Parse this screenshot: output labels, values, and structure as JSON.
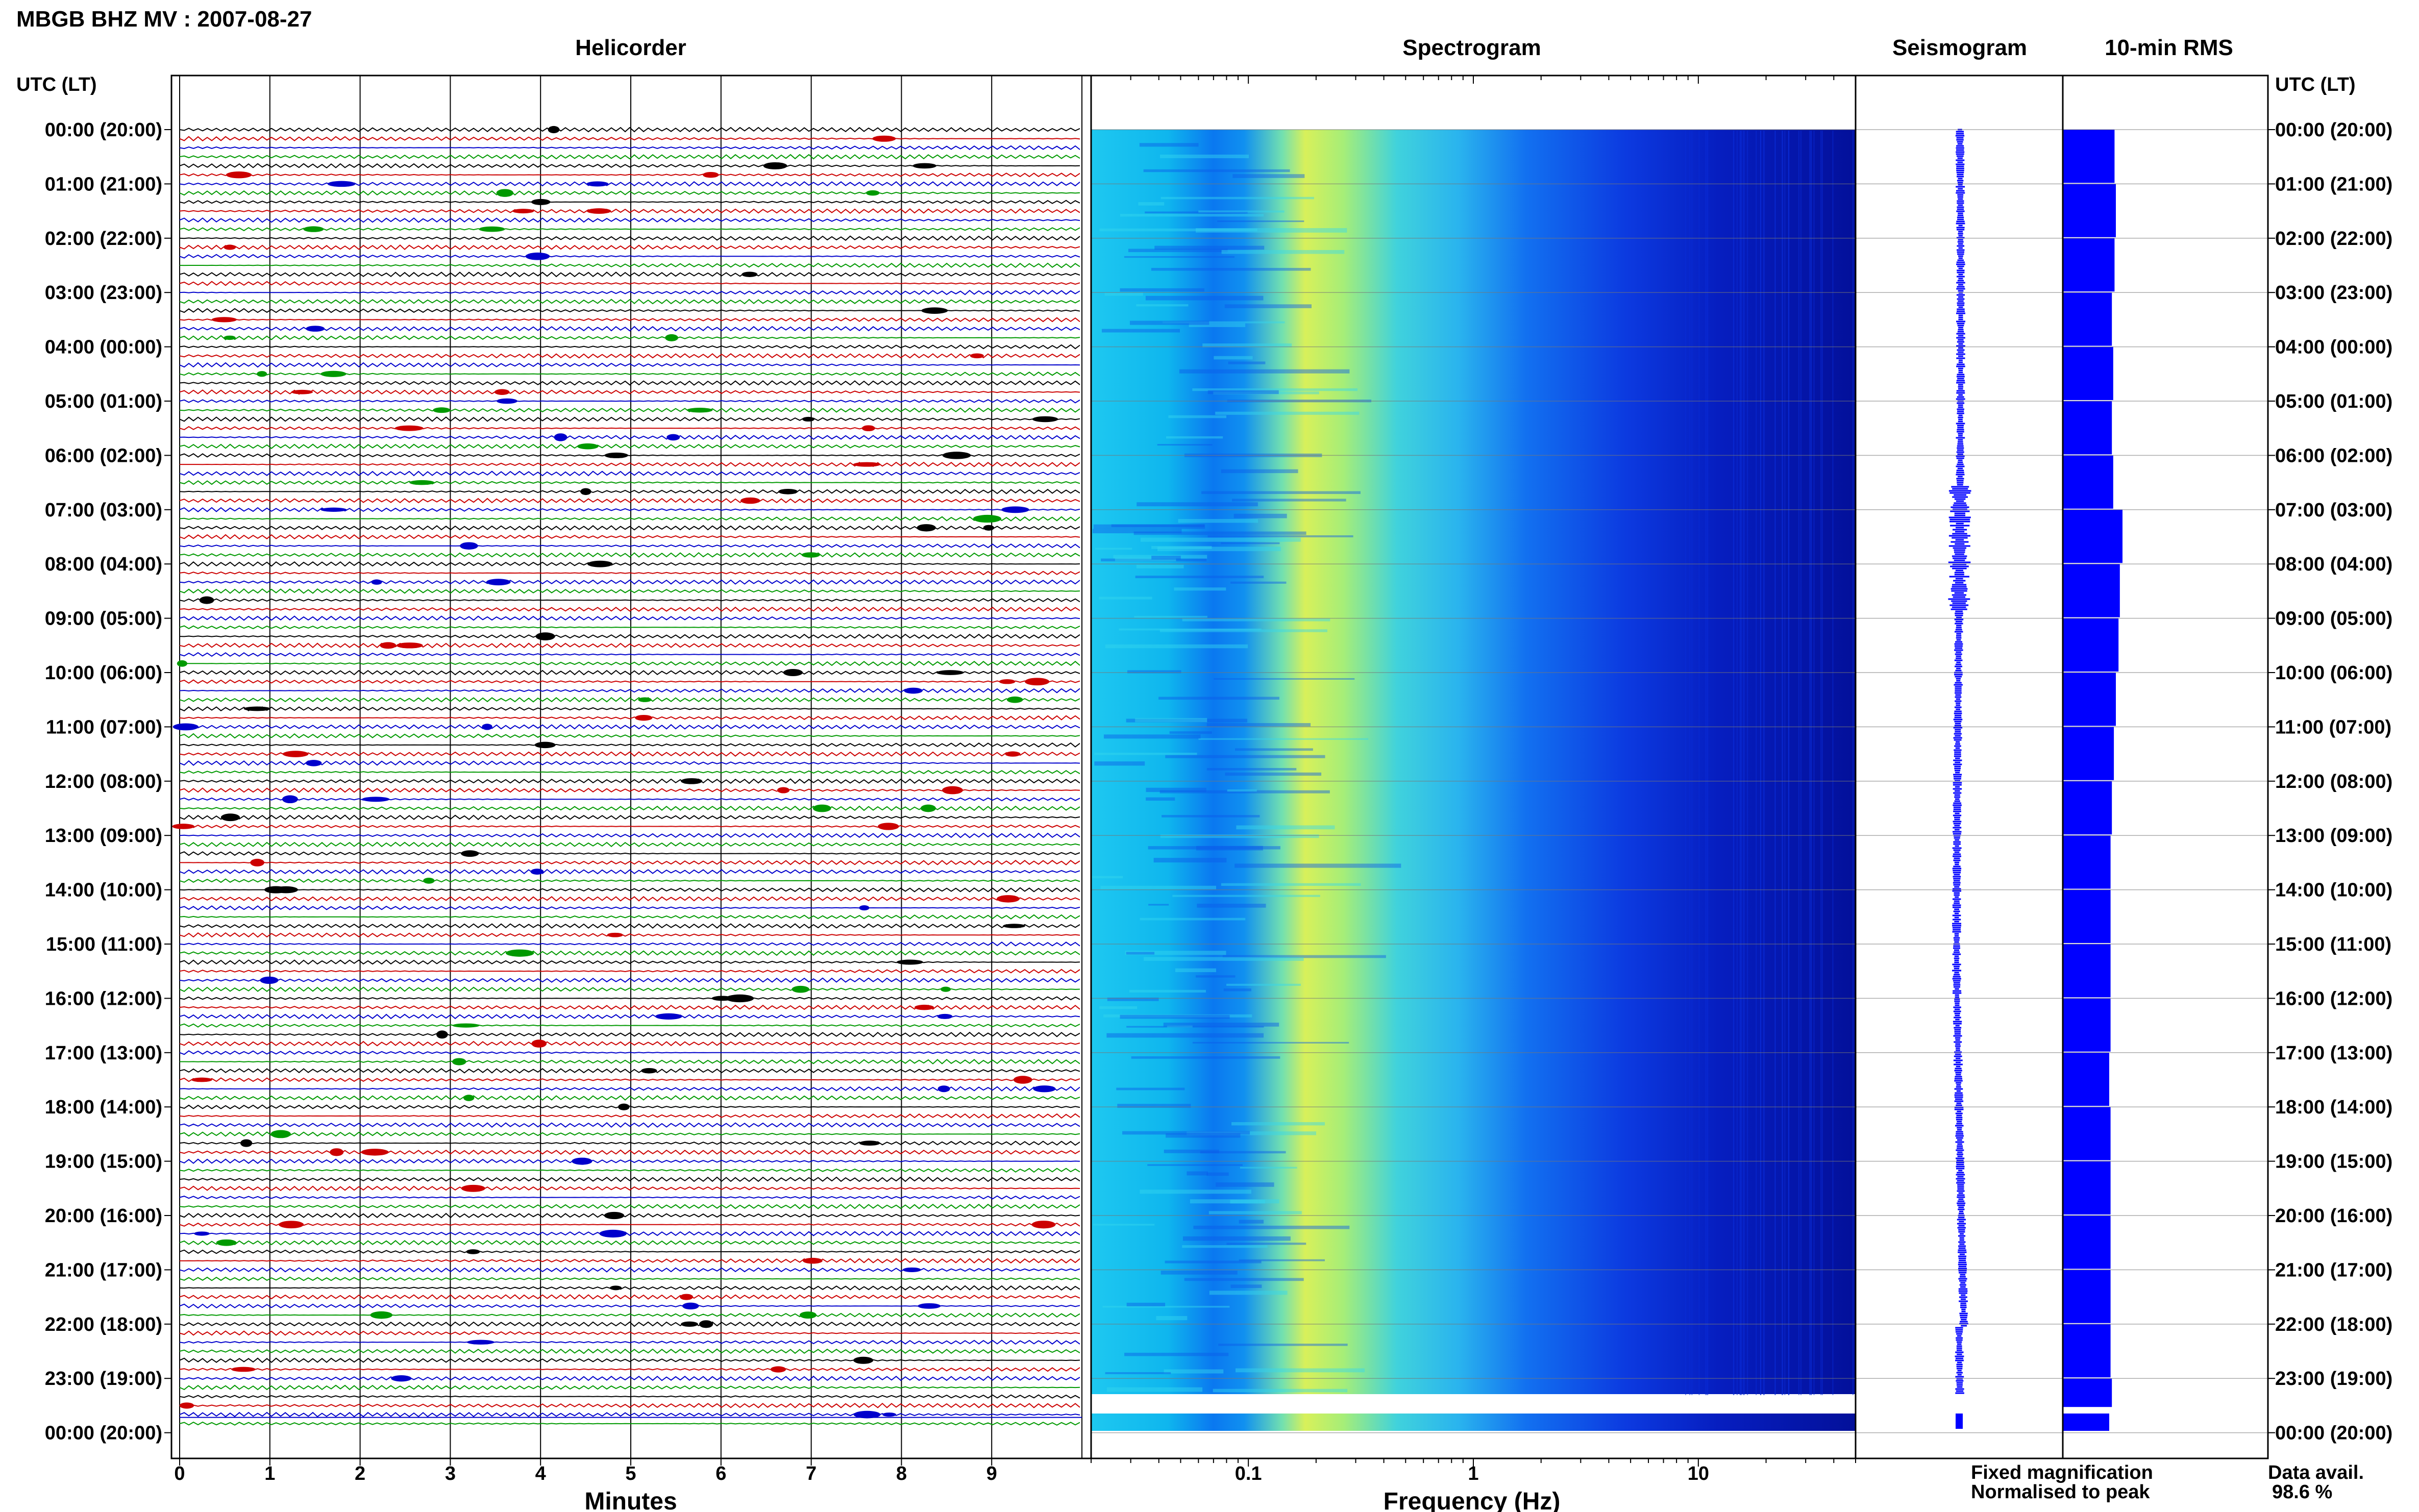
{
  "title": "MBGB BHZ MV : 2007-08-27",
  "panels": {
    "helicorder": "Helicorder",
    "spectrogram": "Spectrogram",
    "seismogram": "Seismogram",
    "rms": "10-min RMS"
  },
  "axis_header_left": "UTC (LT)",
  "axis_header_right": "UTC (LT)",
  "time_labels": [
    "00:00 (20:00)",
    "01:00 (21:00)",
    "02:00 (22:00)",
    "03:00 (23:00)",
    "04:00 (00:00)",
    "05:00 (01:00)",
    "06:00 (02:00)",
    "07:00 (03:00)",
    "08:00 (04:00)",
    "09:00 (05:00)",
    "10:00 (06:00)",
    "11:00 (07:00)",
    "12:00 (08:00)",
    "13:00 (09:00)",
    "14:00 (10:00)",
    "15:00 (11:00)",
    "16:00 (12:00)",
    "17:00 (13:00)",
    "18:00 (14:00)",
    "19:00 (15:00)",
    "20:00 (16:00)",
    "21:00 (17:00)",
    "22:00 (18:00)",
    "23:00 (19:00)",
    "00:00 (20:00)"
  ],
  "minutes_ticks": [
    "0",
    "1",
    "2",
    "3",
    "4",
    "5",
    "6",
    "7",
    "8",
    "9"
  ],
  "minutes_label": "Minutes",
  "freq_ticks": [
    "0.1",
    "1",
    "10"
  ],
  "freq_label": "Frequency (Hz)",
  "legend": {
    "fixed": "Fixed magnification",
    "normalised": "Normalised to peak"
  },
  "data_avail_label": "Data avail.",
  "data_avail_value": "98.6 %",
  "colors": {
    "trace_cycle": [
      "#000000",
      "#cc0000",
      "#0000cc",
      "#009900"
    ],
    "fixed": "#0000ff",
    "normalised": "#ff0000",
    "rms": "#0000ff"
  },
  "chart_data": {
    "type": "heatmap",
    "helicorder": {
      "x_range_minutes": [
        0,
        10
      ],
      "lines_per_hour": 6,
      "hours": 24
    },
    "spectrogram": {
      "x_scale": "log",
      "x_range_hz": [
        0.02,
        50
      ],
      "dominant_band_hz": [
        0.18,
        0.35
      ]
    },
    "rms_relative_hourly": [
      0.78,
      0.8,
      0.78,
      0.74,
      0.76,
      0.74,
      0.76,
      0.9,
      0.86,
      0.84,
      0.8,
      0.77,
      0.74,
      0.72,
      0.72,
      0.72,
      0.72,
      0.7,
      0.72,
      0.72,
      0.72,
      0.72,
      0.72,
      0.74,
      0.7
    ]
  }
}
